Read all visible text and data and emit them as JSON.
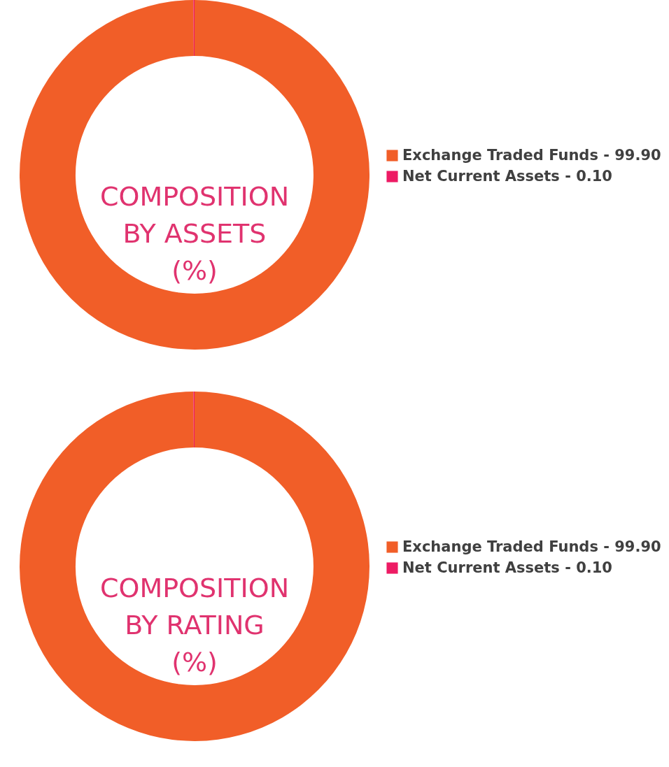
{
  "chart_data": [
    {
      "type": "donut",
      "title": "COMPOSITION\nBY ASSETS\n(%)",
      "categories": [
        "Exchange Traded Funds - 99.90",
        "Net Current Assets - 0.10"
      ],
      "values": [
        99.9,
        0.1
      ],
      "colors": [
        "#f15e28",
        "#ed1b64"
      ],
      "legend": "right"
    },
    {
      "type": "donut",
      "title": "COMPOSITION\nBY RATING\n(%)",
      "categories": [
        "Exchange Traded Funds - 99.90",
        "Net Current Assets - 0.10"
      ],
      "values": [
        99.9,
        0.1
      ],
      "colors": [
        "#f15e28",
        "#ed1b64"
      ],
      "legend": "right"
    }
  ]
}
